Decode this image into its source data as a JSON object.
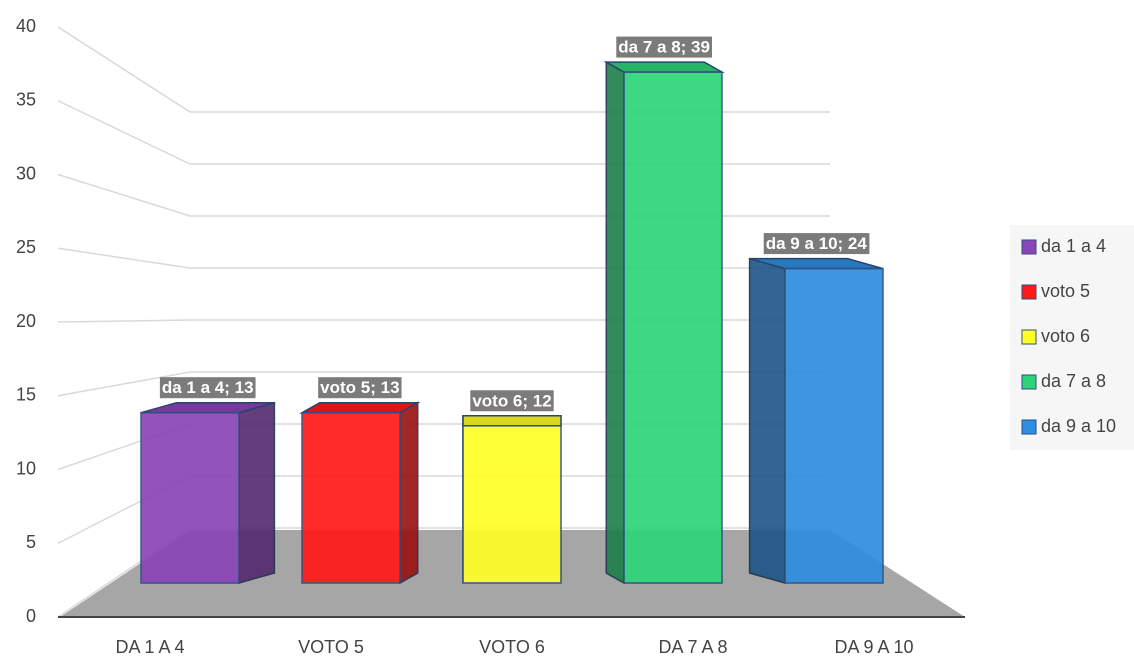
{
  "chart_data": {
    "type": "bar3d",
    "categories": [
      "DA 1 A 4",
      "VOTO 5",
      "VOTO 6",
      "DA 7 A 8",
      "DA 9 A 10"
    ],
    "values": [
      13,
      13,
      12,
      39,
      24
    ],
    "value_labels": [
      "da 1 a 4; 13",
      "voto 5; 13",
      "voto 6; 12",
      "da 7 a 8; 39",
      "da 9 a 10; 24"
    ],
    "legend": [
      "da 1 a 4",
      "voto 5",
      "voto 6",
      "da 7 a 8",
      "da 9 a 10"
    ],
    "colors": [
      "#8a45b8",
      "#ff1a1a",
      "#ffff26",
      "#2ed47a",
      "#2e8ee0"
    ],
    "ylim": [
      0,
      40
    ],
    "yticks": [
      0,
      5,
      10,
      15,
      20,
      25,
      30,
      35,
      40
    ],
    "grid": true,
    "legend_position": "right"
  }
}
